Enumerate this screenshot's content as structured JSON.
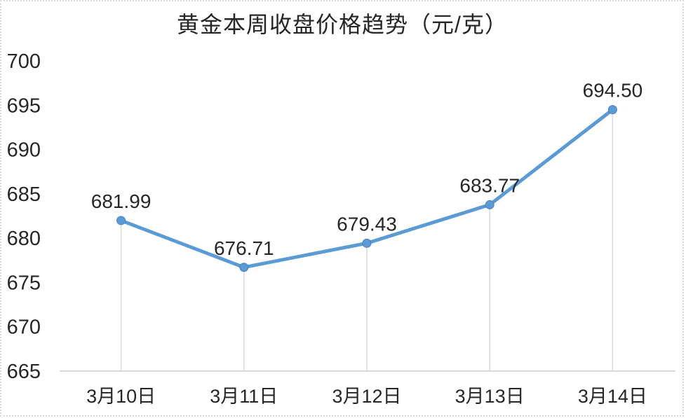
{
  "title": "黄金本周收盘价格趋势（元/克）",
  "chart_data": {
    "type": "line",
    "title": "黄金本周收盘价格趋势（元/克）",
    "categories": [
      "3月10日",
      "3月11日",
      "3月12日",
      "3月13日",
      "3月14日"
    ],
    "values": [
      681.99,
      676.71,
      679.43,
      683.77,
      694.5
    ],
    "data_labels": [
      "681.99",
      "676.71",
      "679.43",
      "683.77",
      "694.50"
    ],
    "ylim": [
      665,
      700
    ],
    "ytick_step": 5,
    "yticks": [
      665,
      670,
      675,
      680,
      685,
      690,
      695,
      700
    ],
    "xlabel": "",
    "ylabel": "",
    "grid": false,
    "legend": false,
    "marker": "circle",
    "drop_lines": true,
    "line_color": "#5b9bd5",
    "marker_color": "#5b9bd5",
    "marker_edge_color": "#4a7fc1",
    "axis_color": "#d9d9d9",
    "drop_line_color": "#d9d9d9",
    "text_color": "#262626"
  }
}
